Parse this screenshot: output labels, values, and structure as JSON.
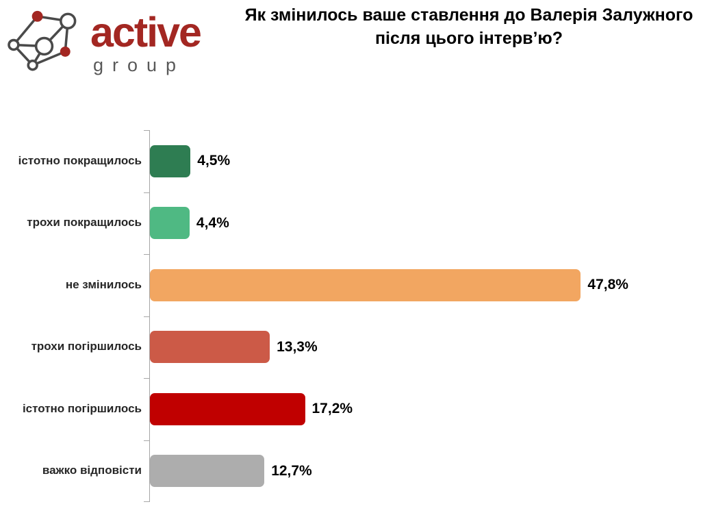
{
  "logo": {
    "wordmark": "active",
    "subtext": "group",
    "brand_red": "#A32722",
    "brand_gray": "#595959",
    "line_color": "#4A4A4A"
  },
  "title": "Як змінилось ваше ставлення до Валерія Залужного після цього інтерв’ю?",
  "chart_data": {
    "type": "bar",
    "orientation": "horizontal",
    "title": "Як змінилось ваше ставлення до Валерія Залужного після цього інтерв’ю?",
    "categories": [
      "істотно покращилось",
      "трохи покращилось",
      "не змінилось",
      "трохи погіршилось",
      "істотно погіршилось",
      "важко відповісти"
    ],
    "values": [
      4.5,
      4.4,
      47.8,
      13.3,
      17.2,
      12.7
    ],
    "value_labels": [
      "4,5%",
      "4,4%",
      "47,8%",
      "13,3%",
      "17,2%",
      "12,7%"
    ],
    "bar_colors": [
      "#2E7D52",
      "#4FB983",
      "#F2A661",
      "#CC5A47",
      "#C00000",
      "#ADADAD"
    ],
    "xlabel": "",
    "ylabel": "",
    "xlim": [
      0,
      60
    ],
    "grid": false,
    "legend": false,
    "axis_color": "#A6A6A6",
    "data_label_position": "outside-end"
  }
}
